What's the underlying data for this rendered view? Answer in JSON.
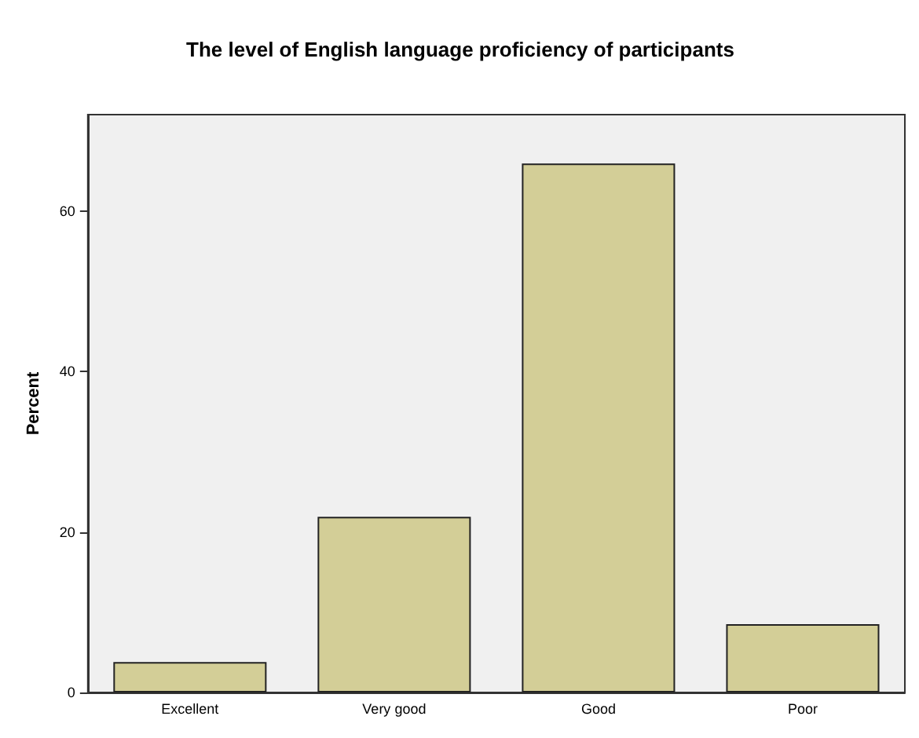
{
  "chart_data": {
    "type": "bar",
    "title": "The level of English language proficiency of participants",
    "ylabel": "Percent",
    "categories": [
      "Excellent",
      "Very good",
      "Good",
      "Poor"
    ],
    "values": [
      3.8,
      21.9,
      65.9,
      8.5
    ],
    "color": "#d3ce97",
    "ylim": [
      0,
      72
    ],
    "yticks": [
      0,
      20,
      40,
      60
    ],
    "grid": false
  }
}
